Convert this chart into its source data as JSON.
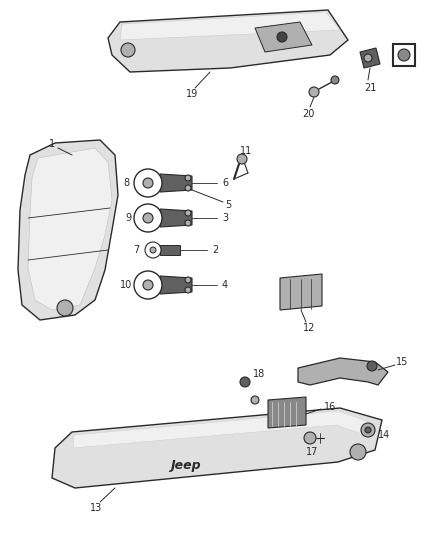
{
  "background_color": "#ffffff",
  "figsize": [
    4.38,
    5.33
  ],
  "dpi": 100,
  "line_color": "#2a2a2a",
  "fill_light": "#e0e0e0",
  "fill_mid": "#b0b0b0",
  "fill_dark": "#606060",
  "label_fontsize": 7.0
}
